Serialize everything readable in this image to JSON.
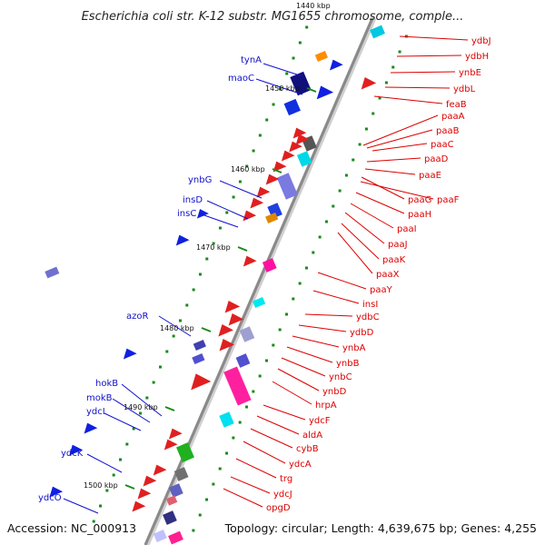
{
  "title": "Escherichia coli str. K-12 substr. MG1655 chromosome, comple...",
  "top_kbp": "1440 kbp",
  "accession": "Accession: NC_000913",
  "topology": "Topology: circular; Length: 4,639,675 bp; Genes: 4,255",
  "scale": [
    "1450 kbp",
    "1460 kbp",
    "1470 kbp",
    "1480 kbp",
    "1490 kbp",
    "1500 kbp"
  ],
  "colors": {
    "backbone": "#8a8a8a",
    "left_label": "#1010cc",
    "right_label": "#dd0000",
    "tick": "#1a8a1a"
  },
  "left_labels": [
    "tynA",
    "maoC",
    "ynbG",
    "insD",
    "insC",
    "azoR",
    "hokB",
    "mokB",
    "ydcI",
    "ydcK",
    "ydcO"
  ],
  "right_labels": [
    "ydbJ",
    "ydbH",
    "ynbE",
    "ydbL",
    "feaB",
    "paaA",
    "paaB",
    "paaC",
    "paaD",
    "paaE",
    "paaG",
    "paaF",
    "paaH",
    "paaI",
    "paaJ",
    "paaK",
    "paaX",
    "paaY",
    "insI",
    "ydbC",
    "ydbD",
    "ynbA",
    "ynbB",
    "ynbC",
    "ynbD",
    "hrpA",
    "ydcF",
    "aldA",
    "cybB",
    "ydcA",
    "trg",
    "ydcJ",
    "opgD"
  ]
}
